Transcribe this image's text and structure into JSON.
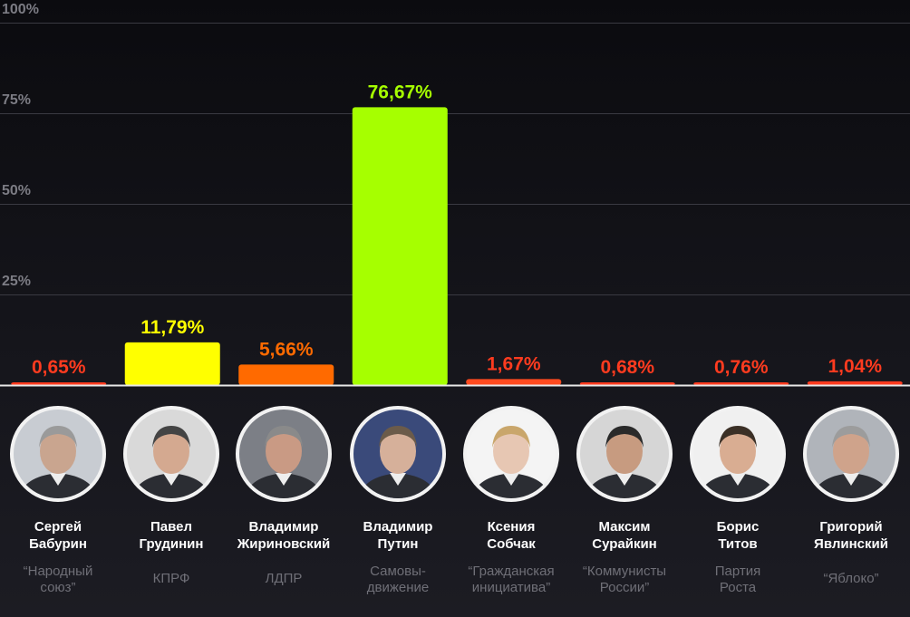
{
  "chart_data": {
    "type": "bar",
    "ylim": [
      0,
      100
    ],
    "y_ticks": [
      "100%",
      "75%",
      "50%",
      "25%"
    ],
    "y_tick_values": [
      100,
      75,
      50,
      25
    ],
    "grid": true,
    "categories": [
      "Сергей Бабурин",
      "Павел Грудинин",
      "Владимир Жириновский",
      "Владимир Путин",
      "Ксения Собчак",
      "Максим Сурайкин",
      "Борис Титов",
      "Григорий Явлинский"
    ],
    "values": [
      0.65,
      11.79,
      5.66,
      76.67,
      1.67,
      0.68,
      0.76,
      1.04
    ],
    "value_labels": [
      "0,65%",
      "11,79%",
      "5,66%",
      "76,67%",
      "1,67%",
      "0,68%",
      "0,76%",
      "1,04%"
    ],
    "bar_colors": [
      "#ff3b1f",
      "#ffff00",
      "#ff6a00",
      "#a6ff00",
      "#ff4a1f",
      "#ff3b1f",
      "#ff3b1f",
      "#ff3b1f"
    ],
    "label_colors": [
      "#ff3b1f",
      "#ffff00",
      "#ff6a00",
      "#a6ff00",
      "#ff3b1f",
      "#ff3b1f",
      "#ff3b1f",
      "#ff3b1f"
    ]
  },
  "candidates": [
    {
      "first": "Сергей",
      "last": "Бабурин",
      "party_line1": "“Народный",
      "party_line2": "союз”",
      "icon": "portrait-icon"
    },
    {
      "first": "Павел",
      "last": "Грудинин",
      "party_line1": "КПРФ",
      "party_line2": "",
      "icon": "portrait-icon"
    },
    {
      "first": "Владимир",
      "last": "Жириновский",
      "party_line1": "ЛДПР",
      "party_line2": "",
      "icon": "portrait-icon"
    },
    {
      "first": "Владимир",
      "last": "Путин",
      "party_line1": "Самовы-",
      "party_line2": "движение",
      "icon": "portrait-icon"
    },
    {
      "first": "Ксения",
      "last": "Собчак",
      "party_line1": "“Гражданская",
      "party_line2": "инициатива”",
      "icon": "portrait-icon"
    },
    {
      "first": "Максим",
      "last": "Сурайкин",
      "party_line1": "“Коммунисты",
      "party_line2": "России”",
      "icon": "portrait-icon"
    },
    {
      "first": "Борис",
      "last": "Титов",
      "party_line1": "Партия",
      "party_line2": "Роста",
      "icon": "portrait-icon"
    },
    {
      "first": "Григорий",
      "last": "Явлинский",
      "party_line1": "“Яблоко”",
      "party_line2": "",
      "icon": "portrait-icon"
    }
  ]
}
